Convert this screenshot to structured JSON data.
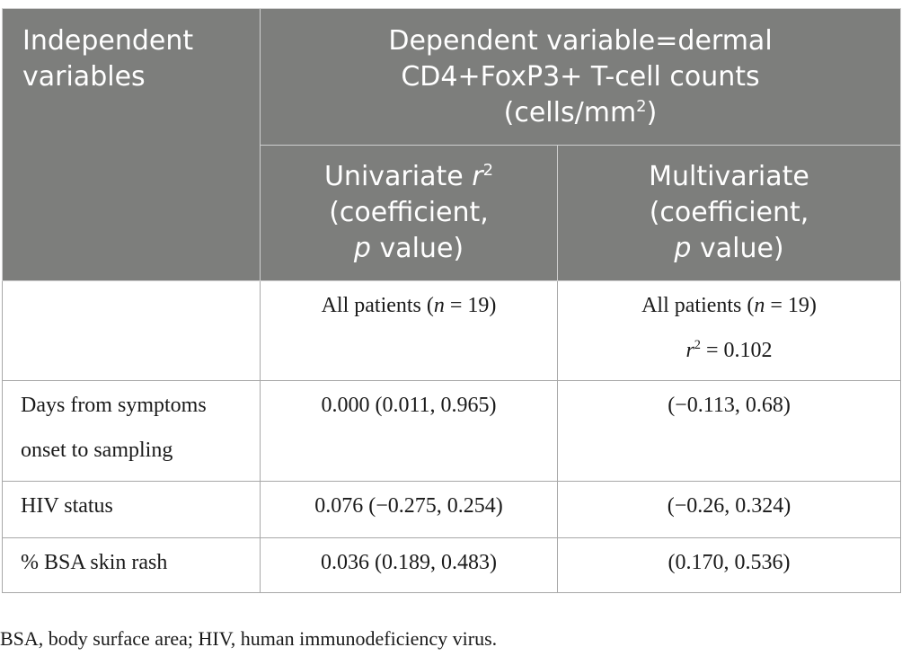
{
  "header": {
    "independent_label": "Independent variables",
    "dependent": {
      "line1": "Dependent variable=dermal",
      "line2": "CD4+FoxP3+ T-cell counts",
      "line3_prefix": "(cells/mm",
      "line3_sup": "2",
      "line3_suffix": ")"
    },
    "univariate": {
      "line1": "Univariate",
      "r": "r",
      "r_sup": "2",
      "line2": "(coefficient,",
      "p": "p",
      "line3_suffix": " value)"
    },
    "multivariate": {
      "line1": "Multivariate",
      "line2": "(coefficient,",
      "p": "p",
      "line3_suffix": " value)"
    }
  },
  "patients_row": {
    "univariate": {
      "prefix": "All patients (",
      "n": "n",
      "suffix": " = 19)"
    },
    "multivariate": {
      "prefix": "All patients (",
      "n": "n",
      "suffix": " = 19)",
      "r": "r",
      "r_sup": "2",
      "r_value": " = 0.102"
    }
  },
  "rows": [
    {
      "label_line1": "Days from symptoms",
      "label_line2": "onset to sampling",
      "univariate": "0.000 (0.011, 0.965)",
      "multivariate": "(−0.113, 0.68)"
    },
    {
      "label_line1": "HIV status",
      "univariate": "0.076 (−0.275, 0.254)",
      "multivariate": "(−0.26, 0.324)"
    },
    {
      "label_line1": "% BSA skin rash",
      "univariate": "0.036 (0.189, 0.483)",
      "multivariate": "(0.170, 0.536)"
    }
  ],
  "footnote": "BSA, body surface area; HIV, human immunodeficiency virus."
}
